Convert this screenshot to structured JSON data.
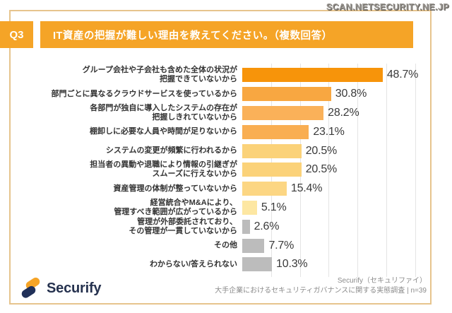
{
  "watermark": "SCAN.NETSECURITY.NE.JP",
  "header": {
    "question_number": "Q3",
    "title": "IT資産の把握が難しい理由を教えてください。（複数回答）"
  },
  "chart_data": {
    "type": "bar",
    "orientation": "horizontal",
    "title": "IT資産の把握が難しい理由を教えてください。（複数回答）",
    "categories": [
      "グループ会社や子会社も含めた全体の状況が\n把握できていないから",
      "部門ごとに異なるクラウドサービスを使っているから",
      "各部門が独自に導入したシステムの存在が\n把握しきれていないから",
      "棚卸しに必要な人員や時間が足りないから",
      "システムの変更が頻繁に行われるから",
      "担当者の異動や退職により情報の引継ぎが\nスムーズに行えないから",
      "資産管理の体制が整っていないから",
      "経営統合やM&Aにより、\n管理すべき範囲が広がっているから",
      "管理が外部委託されており、\nその管理が一貫していないから",
      "その他",
      "わからない/答えられない"
    ],
    "values": [
      48.7,
      30.8,
      28.2,
      23.1,
      20.5,
      20.5,
      15.4,
      5.1,
      2.6,
      7.7,
      10.3
    ],
    "value_labels": [
      "48.7%",
      "30.8%",
      "28.2%",
      "23.1%",
      "20.5%",
      "20.5%",
      "15.4%",
      "5.1%",
      "2.6%",
      "7.7%",
      "10.3%"
    ],
    "bar_colors": [
      "#F7940A",
      "#F8A741",
      "#FAB159",
      "#F9AE52",
      "#FBD279",
      "#FBD279",
      "#FCD683",
      "#FDE7A2",
      "#BCBCBC",
      "#BCBCBC",
      "#BCBCBC"
    ],
    "xlim": [
      0,
      60
    ],
    "gridline_step": 10,
    "grid": true,
    "legend": false,
    "n": 39
  },
  "footer": {
    "brand": "Securify",
    "source_line1": "Securify（セキュリファイ）",
    "source_line2": "大手企業におけるセキュリティガバナンスに関する実態調査 | n=39"
  },
  "colors": {
    "header_orange": "#F5A427",
    "frame_border": "#E6C48D",
    "gridline": "#E4E4E4",
    "value_text": "#3A3A3A",
    "label_text": "#333333",
    "brand_navy": "#26324F",
    "logo_orange": "#F5A427",
    "source_text": "#8B8B8B"
  }
}
